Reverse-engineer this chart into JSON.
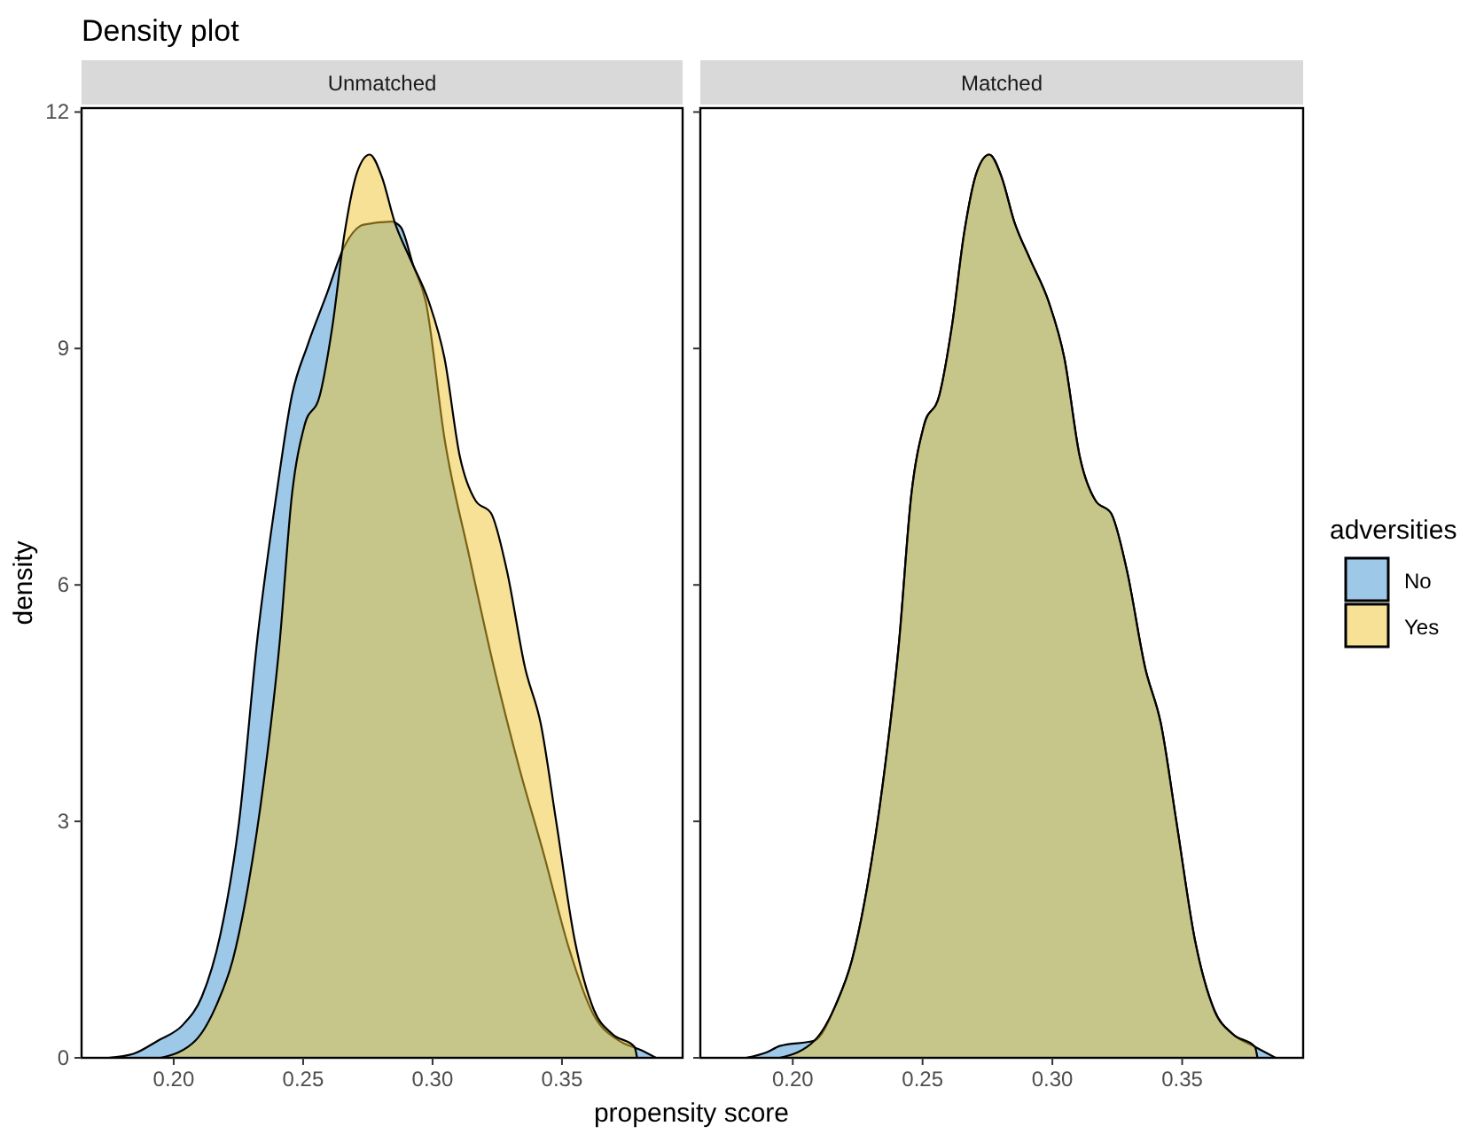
{
  "chart_data": [
    {
      "type": "area",
      "title": "Density plot",
      "subtitle": "Unmatched",
      "xlabel": "propensity score",
      "ylabel": "density",
      "xlim": [
        0.1644,
        0.3966
      ],
      "ylim": [
        0,
        12.05
      ],
      "xticks": [
        {
          "value": 0.2,
          "label": "0.20"
        },
        {
          "value": 0.25,
          "label": "0.25"
        },
        {
          "value": 0.3,
          "label": "0.30"
        },
        {
          "value": 0.35,
          "label": "0.35"
        }
      ],
      "yticks": [
        0,
        3,
        6,
        9,
        12
      ],
      "legend": false,
      "series": [
        {
          "color": "#3b91d1",
          "x": [
            0.1748,
            0.1844,
            0.194,
            0.2036,
            0.2108,
            0.218,
            0.2252,
            0.2324,
            0.2397,
            0.2457,
            0.2517,
            0.2589,
            0.266,
            0.2733,
            0.2841,
            0.2877,
            0.2925,
            0.2974,
            0.3046,
            0.3142,
            0.3238,
            0.3334,
            0.343,
            0.3526,
            0.3623,
            0.3719,
            0.3803,
            0.3863
          ],
          "values": [
            0,
            0.05,
            0.22,
            0.42,
            0.77,
            1.56,
            2.98,
            5.34,
            7.15,
            8.41,
            9.04,
            9.67,
            10.3,
            10.57,
            10.61,
            10.54,
            10.06,
            9.59,
            7.86,
            6.36,
            4.94,
            3.69,
            2.58,
            1.4,
            0.54,
            0.22,
            0.1,
            0
          ]
        },
        {
          "color": "#efc32d",
          "x": [
            0.195,
            0.2084,
            0.2168,
            0.2228,
            0.2288,
            0.2349,
            0.2409,
            0.2457,
            0.2505,
            0.2565,
            0.2613,
            0.266,
            0.2709,
            0.2757,
            0.2805,
            0.2853,
            0.2913,
            0.2986,
            0.3046,
            0.3106,
            0.3166,
            0.3226,
            0.3286,
            0.3358,
            0.3418,
            0.3478,
            0.355,
            0.3623,
            0.3695,
            0.378,
            0.379
          ],
          "values": [
            0,
            0.22,
            0.69,
            1.24,
            2.19,
            3.53,
            5.26,
            7.15,
            8.02,
            8.41,
            9.28,
            10.46,
            11.24,
            11.46,
            11.17,
            10.61,
            10.14,
            9.59,
            8.88,
            7.62,
            7.07,
            6.91,
            6.2,
            4.94,
            4.24,
            2.99,
            1.48,
            0.61,
            0.3,
            0.14,
            0
          ]
        }
      ]
    },
    {
      "type": "area",
      "subtitle": "Matched",
      "legend_title": "adversities",
      "xlim": [
        0.1644,
        0.3966
      ],
      "ylim": [
        0,
        12.05
      ],
      "xticks": [
        {
          "value": 0.2,
          "label": "0.20"
        },
        {
          "value": 0.25,
          "label": "0.25"
        },
        {
          "value": 0.3,
          "label": "0.30"
        },
        {
          "value": 0.35,
          "label": "0.35"
        }
      ],
      "yticks": [
        0,
        3,
        6,
        9,
        12
      ],
      "tick_labels": "x",
      "legend": "right",
      "series": [
        {
          "name": "No",
          "color": "#3b91d1",
          "x": [
            0.182,
            0.19,
            0.195,
            0.2084,
            0.2168,
            0.2228,
            0.2288,
            0.2349,
            0.2409,
            0.2457,
            0.2505,
            0.2565,
            0.2613,
            0.266,
            0.2709,
            0.2757,
            0.2805,
            0.2853,
            0.2913,
            0.2986,
            0.3046,
            0.3106,
            0.3166,
            0.3226,
            0.3286,
            0.3358,
            0.3418,
            0.3478,
            0.355,
            0.3623,
            0.3695,
            0.378,
            0.386
          ],
          "values": [
            0,
            0.07,
            0.15,
            0.22,
            0.69,
            1.24,
            2.19,
            3.53,
            5.26,
            7.15,
            8.02,
            8.41,
            9.28,
            10.46,
            11.24,
            11.46,
            11.17,
            10.61,
            10.14,
            9.59,
            8.88,
            7.62,
            7.07,
            6.91,
            6.2,
            4.94,
            4.24,
            2.99,
            1.48,
            0.61,
            0.3,
            0.14,
            0
          ]
        },
        {
          "name": "Yes",
          "color": "#efc32d",
          "x": [
            0.195,
            0.2084,
            0.2168,
            0.2228,
            0.2288,
            0.2349,
            0.2409,
            0.2457,
            0.2505,
            0.2565,
            0.2613,
            0.266,
            0.2709,
            0.2757,
            0.2805,
            0.2853,
            0.2913,
            0.2986,
            0.3046,
            0.3106,
            0.3166,
            0.3226,
            0.3286,
            0.3358,
            0.3418,
            0.3478,
            0.355,
            0.3623,
            0.3695,
            0.378,
            0.379
          ],
          "values": [
            0,
            0.22,
            0.69,
            1.24,
            2.19,
            3.53,
            5.26,
            7.15,
            8.02,
            8.41,
            9.28,
            10.46,
            11.24,
            11.46,
            11.17,
            10.61,
            10.14,
            9.59,
            8.88,
            7.62,
            7.07,
            6.91,
            6.2,
            4.94,
            4.24,
            2.99,
            1.48,
            0.61,
            0.3,
            0.14,
            0
          ]
        }
      ]
    }
  ]
}
